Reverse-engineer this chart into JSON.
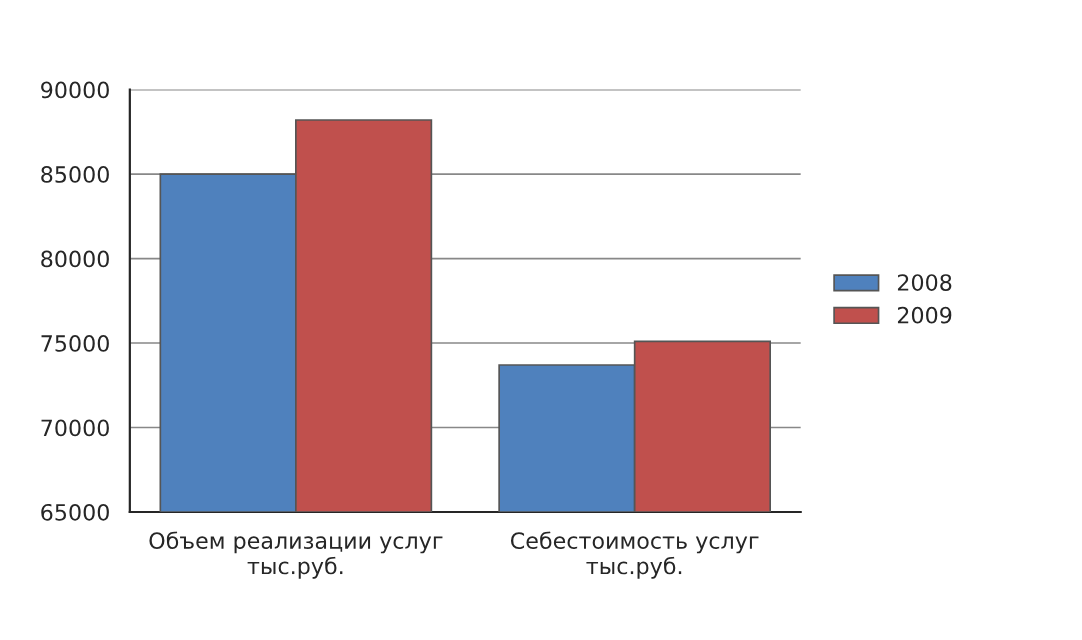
{
  "chart_data": {
    "type": "bar",
    "categories": [
      "Объем реализации услуг\nтыс.руб.",
      "Себестоимость услуг\nтыс.руб."
    ],
    "series": [
      {
        "name": "2008",
        "color": "#4f81bd",
        "values": [
          85000,
          73700
        ]
      },
      {
        "name": "2009",
        "color": "#c0504d",
        "values": [
          88200,
          75100
        ]
      }
    ],
    "ylim": [
      65000,
      90000
    ],
    "yticks": [
      65000,
      70000,
      75000,
      80000,
      85000,
      90000
    ],
    "grid": "y",
    "legend": "right"
  }
}
